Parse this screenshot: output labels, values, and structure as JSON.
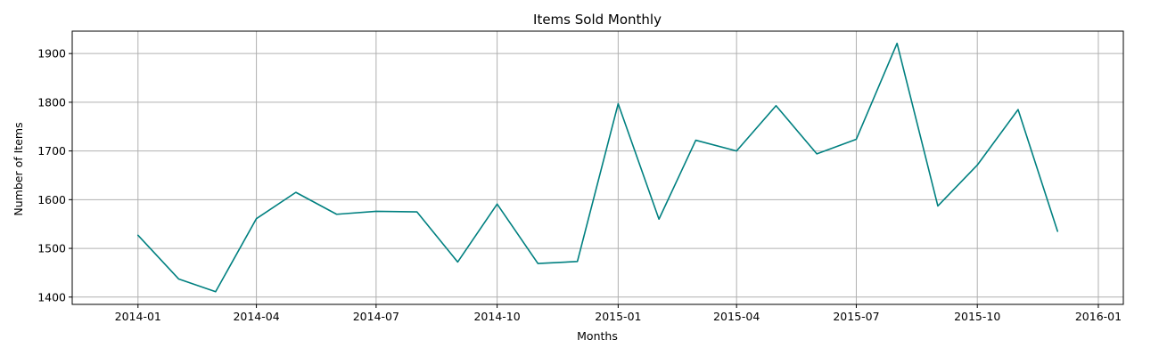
{
  "chart_data": {
    "type": "line",
    "title": "Items Sold Monthly",
    "xlabel": "Months",
    "ylabel": "Number of Items",
    "x": [
      "2014-01",
      "2014-02",
      "2014-03",
      "2014-04",
      "2014-05",
      "2014-06",
      "2014-07",
      "2014-08",
      "2014-09",
      "2014-10",
      "2014-11",
      "2014-12",
      "2015-01",
      "2015-02",
      "2015-03",
      "2015-04",
      "2015-05",
      "2015-06",
      "2015-07",
      "2015-08",
      "2015-09",
      "2015-10",
      "2015-11",
      "2015-12"
    ],
    "series": [
      {
        "values": [
          1527,
          1437,
          1411,
          1561,
          1615,
          1570,
          1576,
          1575,
          1472,
          1591,
          1469,
          1473,
          1797,
          1560,
          1722,
          1700,
          1793,
          1694,
          1724,
          1921,
          1587,
          1671,
          1785,
          1535
        ],
        "color": "#008080"
      }
    ],
    "xlim": [
      "2013-11-12",
      "2016-01-20"
    ],
    "ylim": [
      1385,
      1946
    ],
    "x_ticks": [
      "2014-01",
      "2014-04",
      "2014-07",
      "2014-10",
      "2015-01",
      "2015-04",
      "2015-07",
      "2015-10",
      "2016-01"
    ],
    "y_ticks": [
      1400,
      1500,
      1600,
      1700,
      1800,
      1900
    ],
    "grid": true,
    "legend": "none"
  }
}
